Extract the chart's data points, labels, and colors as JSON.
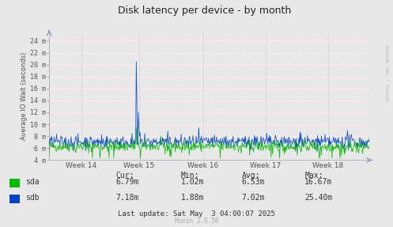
{
  "title": "Disk latency per device - by month",
  "ylabel": "Average IO Wait (seconds)",
  "background_color": "#e8e8e8",
  "plot_bg_color": "#e8e8e8",
  "title_color": "#333333",
  "sda_color": "#00bb00",
  "sdb_color": "#0044cc",
  "week_labels": [
    "Week 14",
    "Week 15",
    "Week 16",
    "Week 17",
    "Week 18"
  ],
  "ylim_min": 4,
  "ylim_max": 25,
  "yticks": [
    4,
    6,
    8,
    10,
    12,
    14,
    16,
    18,
    20,
    22,
    24
  ],
  "ytick_labels": [
    "4 m",
    "6 m",
    "8 m",
    "10 m",
    "12 m",
    "14 m",
    "16 m",
    "18 m",
    "20 m",
    "22 m",
    "24 m"
  ],
  "stats": {
    "cur": {
      "sda": "6.79m",
      "sdb": "7.18m"
    },
    "min": {
      "sda": "1.02m",
      "sdb": "1.88m"
    },
    "avg": {
      "sda": "6.53m",
      "sdb": "7.02m"
    },
    "max": {
      "sda": "16.67m",
      "sdb": "25.40m"
    }
  },
  "last_update": "Last update: Sat May  3 04:00:07 2025",
  "munin_version": "Munin 2.0.56",
  "watermark": "RRDTOOL / TOBI OETIKER",
  "n_points": 600,
  "spike_sdb": 20.5,
  "spike_sda": 9.5,
  "spike2_sdb": 12.0,
  "seed": 42
}
